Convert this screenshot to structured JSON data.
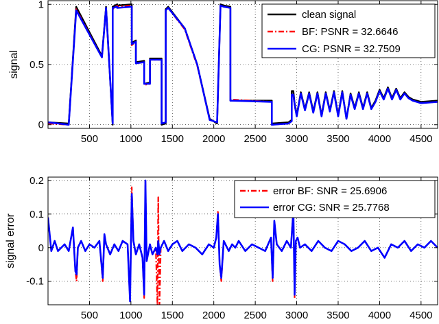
{
  "chart_data": [
    {
      "type": "line",
      "title": "",
      "xlabel": "",
      "ylabel": "signal",
      "xlim": [
        0,
        4700
      ],
      "ylim": [
        -0.03,
        1.03
      ],
      "grid": true,
      "legend_position": "top-right",
      "x_ticks": [
        500,
        1000,
        1500,
        2000,
        2500,
        3000,
        3500,
        4000,
        4500
      ],
      "x_tick_labels": [
        "500",
        "1000",
        "1500",
        "2000",
        "2500",
        "3000",
        "3500",
        "4000",
        "4500"
      ],
      "y_ticks": [
        0,
        0.5,
        1
      ],
      "y_tick_labels": [
        "0",
        "0.5",
        "1"
      ],
      "series": [
        {
          "name": "clean signal",
          "color": "#000000",
          "style": "solid",
          "x": [
            0,
            250,
            340,
            650,
            700,
            780,
            780,
            835,
            835,
            1010,
            1010,
            1060,
            1060,
            1160,
            1160,
            1230,
            1230,
            1370,
            1370,
            1420,
            1420,
            1450,
            1650,
            1800,
            1950,
            2040,
            2080,
            2080,
            2120,
            2200,
            2200,
            2700,
            2700,
            2900,
            2940,
            2940,
            2960,
            2975,
            3000,
            3050,
            3100,
            3150,
            3200,
            3250,
            3300,
            3350,
            3400,
            3450,
            3500,
            3550,
            3600,
            3650,
            3700,
            3750,
            3800,
            3850,
            3900,
            3950,
            4000,
            4050,
            4100,
            4150,
            4200,
            4250,
            4300,
            4350,
            4400,
            4500,
            4700
          ],
          "values": [
            0.02,
            0.01,
            0.98,
            0.57,
            0.98,
            0.0,
            0.98,
            1.0,
            0.99,
            1.0,
            0.68,
            0.7,
            0.52,
            0.53,
            0.34,
            0.35,
            0.55,
            0.55,
            0.0,
            0.01,
            0.96,
            0.98,
            0.8,
            0.5,
            0.05,
            0.01,
            0.98,
            1.0,
            0.99,
            0.98,
            0.2,
            0.2,
            0.01,
            0.02,
            0.04,
            0.28,
            0.28,
            0.18,
            0.08,
            0.27,
            0.13,
            0.27,
            0.11,
            0.27,
            0.08,
            0.27,
            0.12,
            0.28,
            0.08,
            0.28,
            0.05,
            0.26,
            0.14,
            0.27,
            0.14,
            0.27,
            0.14,
            0.2,
            0.29,
            0.22,
            0.31,
            0.22,
            0.3,
            0.22,
            0.27,
            0.23,
            0.21,
            0.19,
            0.2
          ]
        },
        {
          "name": "BF: PSNR = 32.6646",
          "color": "#ff0000",
          "style": "dashdot",
          "x": [
            0,
            250,
            340,
            650,
            700,
            780,
            780,
            835,
            835,
            1010,
            1010,
            1060,
            1060,
            1160,
            1160,
            1230,
            1230,
            1370,
            1370,
            1420,
            1420,
            1450,
            1650,
            1800,
            1950,
            2040,
            2080,
            2080,
            2120,
            2200,
            2200,
            2700,
            2700,
            2900,
            2940,
            2940,
            2960,
            2975,
            3000,
            3050,
            3100,
            3150,
            3200,
            3250,
            3300,
            3350,
            3400,
            3450,
            3500,
            3550,
            3600,
            3650,
            3700,
            3750,
            3800,
            3850,
            3900,
            3950,
            4000,
            4050,
            4100,
            4150,
            4200,
            4250,
            4300,
            4350,
            4400,
            4500,
            4700
          ],
          "values": [
            0.01,
            0.0,
            0.96,
            0.56,
            0.96,
            0.01,
            0.96,
            0.99,
            0.98,
            0.99,
            0.66,
            0.69,
            0.51,
            0.52,
            0.33,
            0.34,
            0.54,
            0.54,
            0.01,
            0.02,
            0.95,
            0.97,
            0.79,
            0.49,
            0.04,
            0.02,
            0.97,
            0.99,
            0.98,
            0.97,
            0.21,
            0.19,
            0.0,
            0.01,
            0.03,
            0.24,
            0.24,
            0.16,
            0.07,
            0.26,
            0.12,
            0.26,
            0.1,
            0.26,
            0.07,
            0.26,
            0.11,
            0.27,
            0.07,
            0.27,
            0.05,
            0.25,
            0.13,
            0.26,
            0.13,
            0.26,
            0.13,
            0.19,
            0.28,
            0.21,
            0.3,
            0.21,
            0.29,
            0.21,
            0.26,
            0.22,
            0.2,
            0.18,
            0.19
          ]
        },
        {
          "name": "CG: PSNR = 32.7509",
          "color": "#0000ff",
          "style": "solid",
          "x": [
            0,
            250,
            340,
            650,
            700,
            780,
            780,
            835,
            835,
            1010,
            1010,
            1060,
            1060,
            1160,
            1160,
            1230,
            1230,
            1370,
            1370,
            1420,
            1420,
            1450,
            1650,
            1800,
            1950,
            2040,
            2080,
            2080,
            2120,
            2200,
            2200,
            2700,
            2700,
            2900,
            2940,
            2940,
            2960,
            2975,
            3000,
            3050,
            3100,
            3150,
            3200,
            3250,
            3300,
            3350,
            3400,
            3450,
            3500,
            3550,
            3600,
            3650,
            3700,
            3750,
            3800,
            3850,
            3900,
            3950,
            4000,
            4050,
            4100,
            4150,
            4200,
            4250,
            4300,
            4350,
            4400,
            4500,
            4700
          ],
          "values": [
            0.02,
            0.0,
            0.95,
            0.56,
            0.97,
            0.01,
            0.97,
            0.98,
            0.97,
            0.98,
            0.67,
            0.69,
            0.51,
            0.52,
            0.34,
            0.34,
            0.54,
            0.54,
            0.01,
            0.02,
            0.95,
            0.97,
            0.8,
            0.5,
            0.04,
            0.02,
            0.97,
            0.99,
            0.98,
            0.97,
            0.2,
            0.19,
            0.0,
            0.01,
            0.03,
            0.25,
            0.25,
            0.17,
            0.07,
            0.26,
            0.12,
            0.26,
            0.1,
            0.26,
            0.07,
            0.26,
            0.11,
            0.27,
            0.07,
            0.27,
            0.05,
            0.25,
            0.13,
            0.26,
            0.13,
            0.26,
            0.13,
            0.19,
            0.28,
            0.21,
            0.3,
            0.21,
            0.29,
            0.21,
            0.26,
            0.22,
            0.2,
            0.18,
            0.19
          ]
        }
      ]
    },
    {
      "type": "line",
      "title": "",
      "xlabel": "",
      "ylabel": "signal error",
      "xlim": [
        0,
        4700
      ],
      "ylim": [
        -0.17,
        0.21
      ],
      "grid": true,
      "legend_position": "top-right",
      "x_ticks": [
        500,
        1000,
        1500,
        2000,
        2500,
        3000,
        3500,
        4000,
        4500
      ],
      "x_tick_labels": [
        "500",
        "1000",
        "1500",
        "2000",
        "2500",
        "3000",
        "3500",
        "4000",
        "4500"
      ],
      "y_ticks": [
        -0.1,
        0,
        0.1,
        0.2
      ],
      "y_tick_labels": [
        "-0.1",
        "0",
        "0.1",
        "0.2"
      ],
      "series": [
        {
          "name": "error BF: SNR = 25.6906",
          "color": "#ff0000",
          "style": "dashdot",
          "x": [
            0,
            40,
            80,
            120,
            160,
            200,
            250,
            300,
            330,
            345,
            360,
            400,
            450,
            500,
            560,
            620,
            660,
            680,
            700,
            750,
            800,
            850,
            900,
            960,
            990,
            1010,
            1030,
            1060,
            1100,
            1140,
            1160,
            1175,
            1190,
            1230,
            1260,
            1300,
            1320,
            1330,
            1335,
            1345,
            1360,
            1400,
            1450,
            1500,
            1560,
            1620,
            1700,
            1780,
            1860,
            1940,
            2000,
            2030,
            2050,
            2070,
            2090,
            2120,
            2180,
            2220,
            2260,
            2300,
            2380,
            2460,
            2540,
            2620,
            2690,
            2710,
            2730,
            2760,
            2820,
            2880,
            2930,
            2960,
            2975,
            2990,
            3010,
            3040,
            3100,
            3180,
            3260,
            3340,
            3420,
            3500,
            3580,
            3660,
            3740,
            3820,
            3900,
            3980,
            4060,
            4140,
            4220,
            4300,
            4380,
            4460,
            4540,
            4620,
            4700
          ],
          "values": [
            0.09,
            -0.01,
            0.02,
            -0.01,
            0.0,
            0.01,
            -0.01,
            0.06,
            -0.07,
            -0.1,
            0.0,
            0.02,
            -0.01,
            0.01,
            0.0,
            0.02,
            -0.1,
            0.04,
            0.01,
            -0.02,
            0.01,
            -0.01,
            0.02,
            0.01,
            -0.16,
            0.18,
            0.02,
            -0.02,
            0.01,
            -0.03,
            -0.15,
            0.2,
            -0.04,
            0.01,
            -0.02,
            0.0,
            -0.17,
            0.15,
            0.02,
            -0.17,
            0.0,
            0.02,
            -0.01,
            0.01,
            0.02,
            -0.01,
            0.01,
            0.0,
            -0.02,
            0.01,
            0.0,
            0.03,
            0.11,
            -0.05,
            -0.1,
            0.02,
            -0.01,
            0.01,
            0.0,
            0.02,
            -0.01,
            0.01,
            0.0,
            -0.01,
            0.03,
            -0.1,
            0.08,
            0.01,
            -0.01,
            0.02,
            0.0,
            0.12,
            -0.15,
            0.02,
            0.03,
            0.0,
            0.01,
            -0.01,
            0.02,
            0.0,
            -0.01,
            0.02,
            0.01,
            -0.01,
            0.0,
            0.02,
            -0.01,
            0.0,
            -0.03,
            0.01,
            0.0,
            0.02,
            -0.01,
            0.01,
            0.0,
            0.02,
            0.0
          ]
        },
        {
          "name": "error CG: SNR = 25.7768",
          "color": "#0000ff",
          "style": "solid",
          "x": [
            0,
            40,
            80,
            120,
            160,
            200,
            250,
            300,
            330,
            345,
            360,
            400,
            450,
            500,
            560,
            620,
            660,
            680,
            700,
            750,
            800,
            850,
            900,
            960,
            990,
            1010,
            1030,
            1060,
            1100,
            1140,
            1160,
            1175,
            1190,
            1230,
            1260,
            1300,
            1320,
            1330,
            1335,
            1345,
            1360,
            1400,
            1450,
            1500,
            1560,
            1620,
            1700,
            1780,
            1860,
            1940,
            2000,
            2030,
            2050,
            2070,
            2090,
            2120,
            2180,
            2220,
            2260,
            2300,
            2380,
            2460,
            2540,
            2620,
            2690,
            2710,
            2730,
            2760,
            2820,
            2880,
            2930,
            2960,
            2975,
            2990,
            3010,
            3040,
            3100,
            3180,
            3260,
            3340,
            3420,
            3500,
            3580,
            3660,
            3740,
            3820,
            3900,
            3980,
            4060,
            4140,
            4220,
            4300,
            4380,
            4460,
            4540,
            4620,
            4700
          ],
          "values": [
            0.09,
            -0.01,
            0.02,
            -0.01,
            0.0,
            0.01,
            -0.01,
            0.06,
            -0.07,
            -0.08,
            0.0,
            0.02,
            -0.01,
            0.01,
            0.0,
            0.02,
            -0.09,
            0.04,
            0.01,
            -0.02,
            0.01,
            -0.01,
            0.02,
            0.01,
            -0.16,
            0.16,
            0.02,
            -0.02,
            0.01,
            -0.03,
            -0.14,
            0.2,
            -0.04,
            0.01,
            -0.02,
            0.0,
            -0.02,
            0.02,
            0.01,
            -0.02,
            0.0,
            0.02,
            -0.01,
            0.01,
            0.02,
            -0.01,
            0.01,
            0.0,
            -0.02,
            0.01,
            0.0,
            0.03,
            0.1,
            -0.05,
            -0.09,
            0.02,
            -0.01,
            0.01,
            0.0,
            0.02,
            -0.01,
            0.01,
            0.0,
            -0.01,
            0.03,
            -0.09,
            0.08,
            0.01,
            -0.01,
            0.02,
            0.0,
            0.11,
            -0.14,
            0.02,
            0.03,
            0.0,
            0.01,
            -0.01,
            0.02,
            0.0,
            -0.01,
            0.02,
            0.01,
            -0.01,
            0.0,
            0.02,
            -0.01,
            0.0,
            -0.03,
            0.01,
            0.0,
            0.02,
            -0.01,
            0.01,
            0.0,
            0.02,
            0.0
          ]
        }
      ]
    }
  ]
}
